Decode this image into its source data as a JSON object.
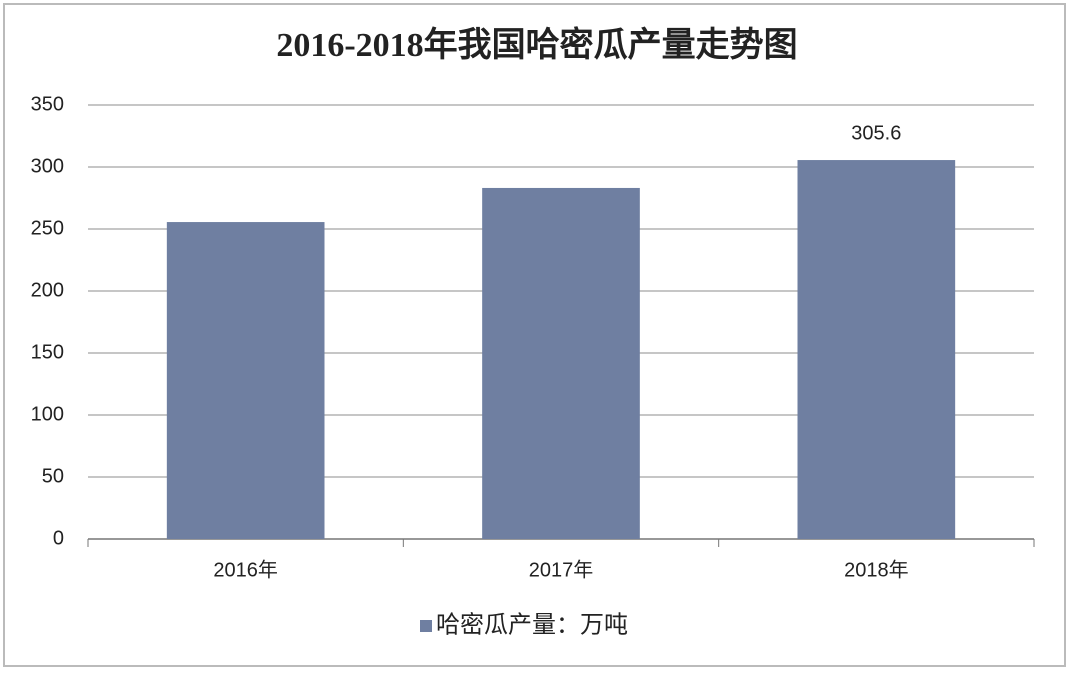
{
  "chart_data": {
    "type": "bar",
    "title": "2016-2018年我国哈密瓜产量走势图",
    "categories": [
      "2016年",
      "2017年",
      "2018年"
    ],
    "series": [
      {
        "name": "哈密瓜产量：万吨",
        "color": "#6f7fa1",
        "values": [
          255.6,
          283.1,
          305.6
        ]
      }
    ],
    "value_labels": [
      null,
      null,
      "305.6"
    ],
    "ylim": [
      0,
      350
    ],
    "yticks": [
      0,
      50,
      100,
      150,
      200,
      250,
      300,
      350
    ],
    "grid": true,
    "legend": "bottom"
  }
}
